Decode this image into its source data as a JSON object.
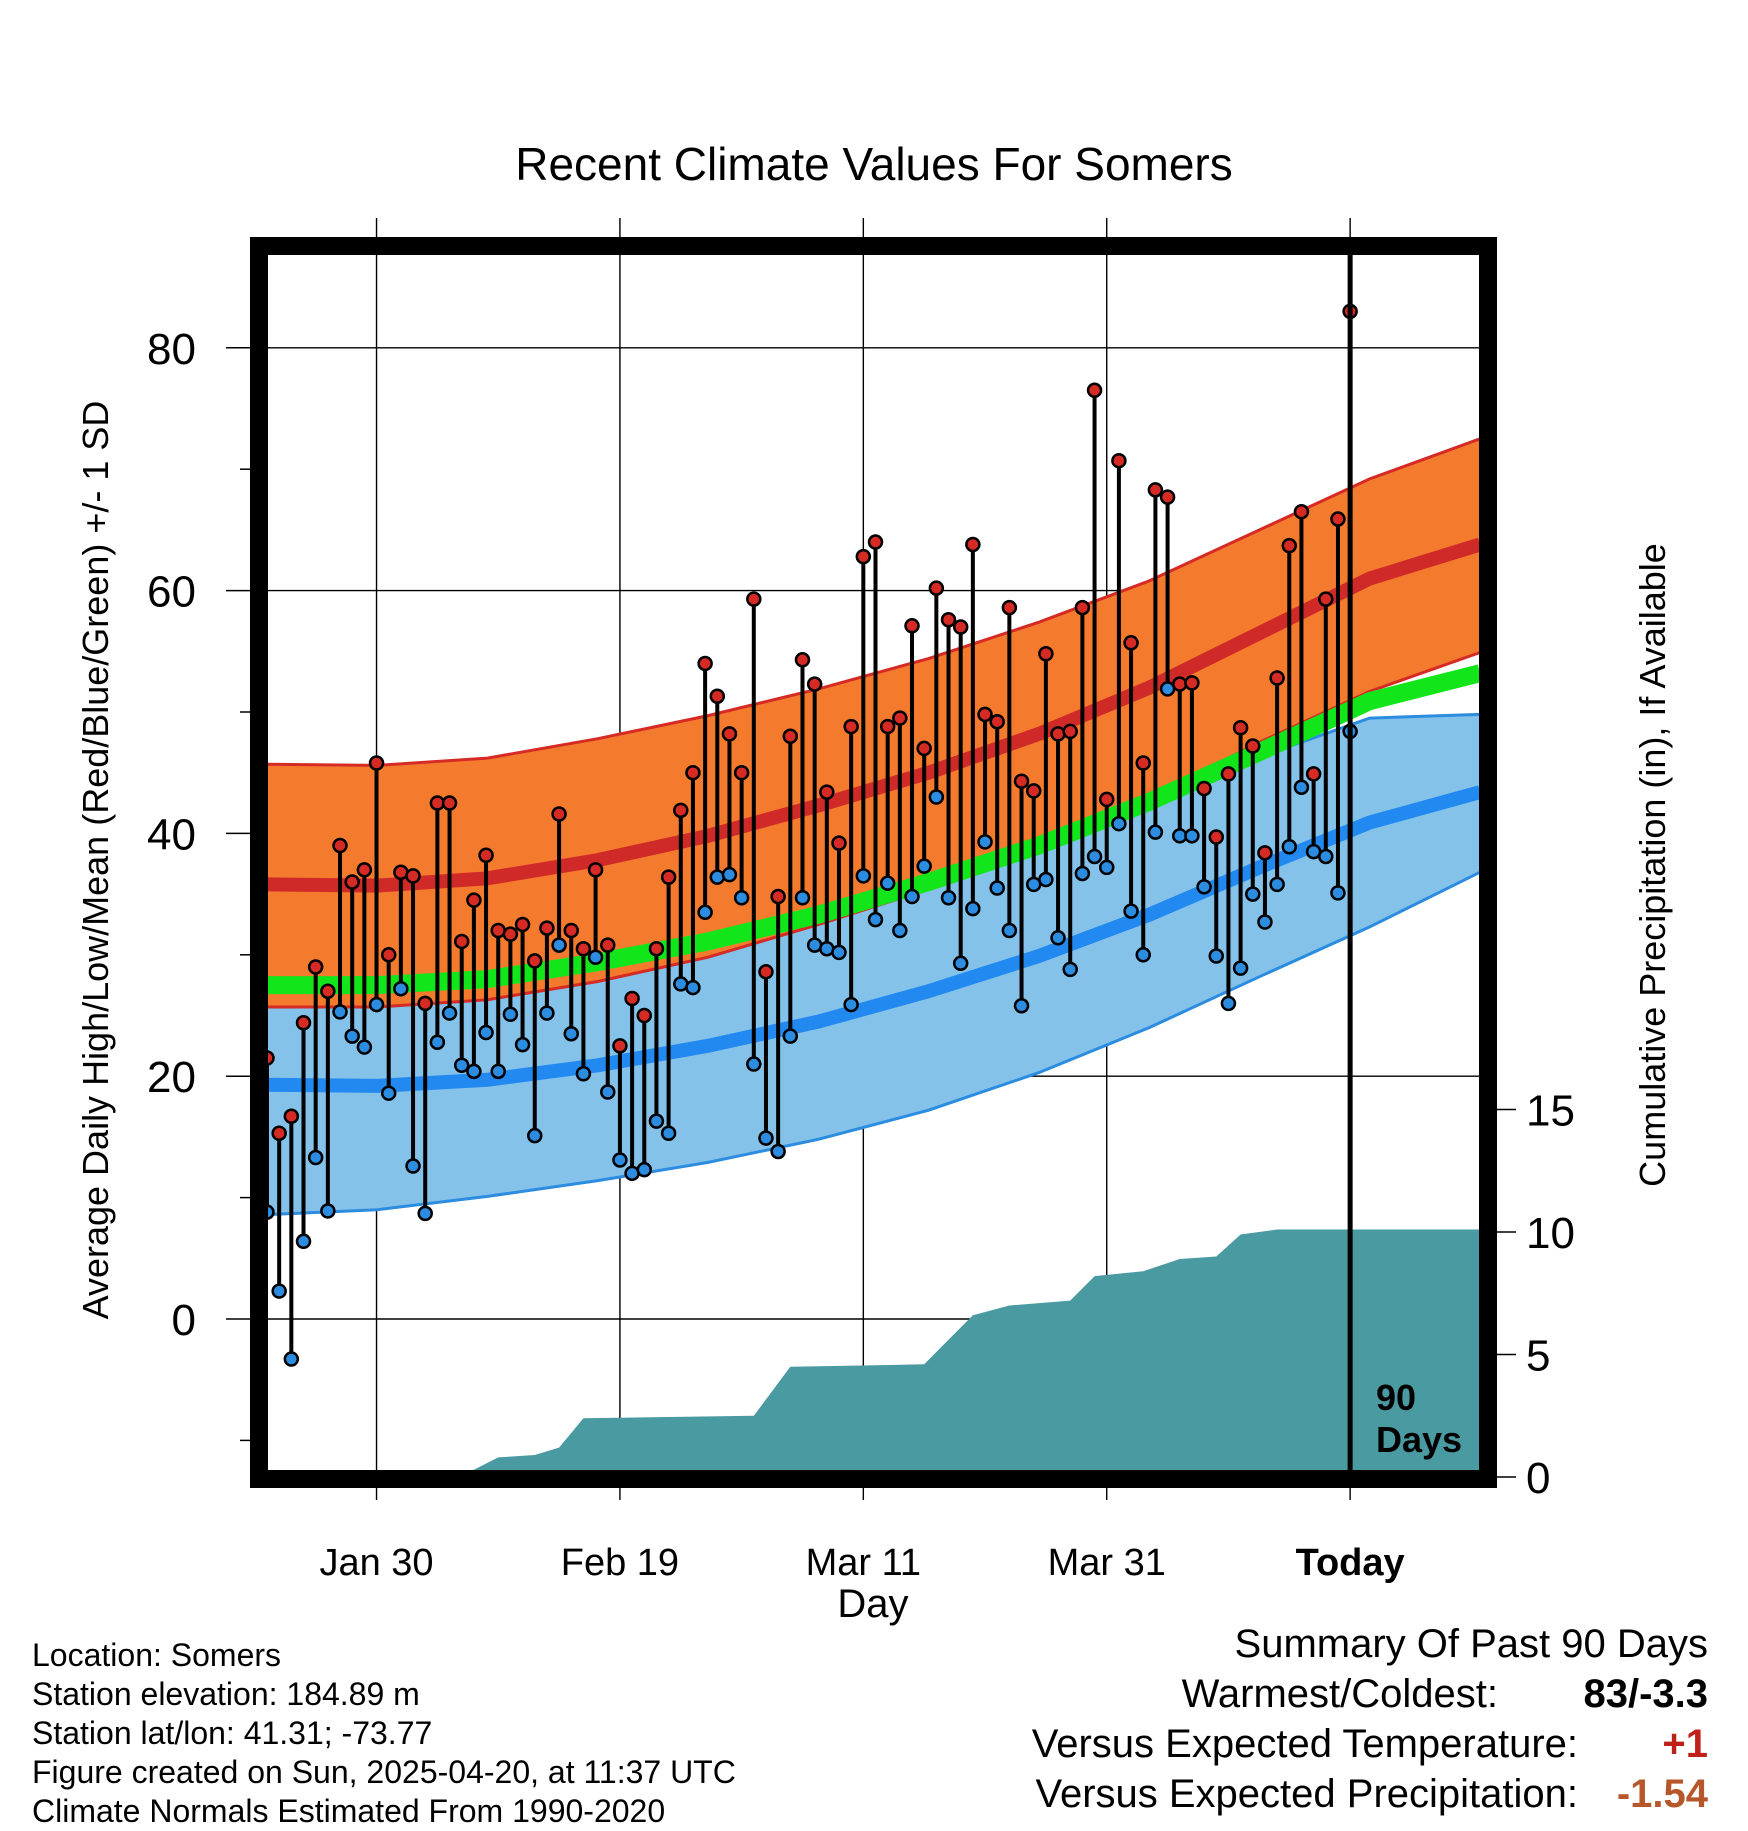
{
  "chart_data": {
    "type": "line",
    "title": "Recent Climate Values For Somers",
    "xlabel": "Day",
    "ylabel": "Average Daily High/Low/Mean (Red/Blue/Green) +/- 1 SD",
    "y2label": "Cumulative Precipitation (in), If Available",
    "ylim": [
      -13,
      88
    ],
    "y_ticks": [
      0,
      20,
      40,
      60,
      80
    ],
    "y2lim": [
      0,
      40
    ],
    "y2_ticks": [
      0,
      5,
      10,
      15
    ],
    "x_tick_labels": [
      "Jan 30",
      "Feb 19",
      "Mar 11",
      "Mar 31",
      "Today"
    ],
    "today_marker_label": [
      "90",
      "Days"
    ],
    "grid": true,
    "normals": {
      "high_mean": [
        35.8,
        35.7,
        36.3,
        37.8,
        39.8,
        42.3,
        45.0,
        48.2,
        52.0,
        56.5,
        61.0,
        63.8
      ],
      "high_upper": [
        45.7,
        45.6,
        46.2,
        47.8,
        49.7,
        51.9,
        54.4,
        57.4,
        60.8,
        65.0,
        69.2,
        72.5
      ],
      "high_lower": [
        25.7,
        25.7,
        26.3,
        27.8,
        29.8,
        32.5,
        35.4,
        38.8,
        42.9,
        47.5,
        51.7,
        54.9
      ],
      "low_mean": [
        19.3,
        19.2,
        19.7,
        20.9,
        22.5,
        24.5,
        27.0,
        29.9,
        33.3,
        37.2,
        40.9,
        43.4
      ],
      "low_upper": [
        30.0,
        29.6,
        29.8,
        30.8,
        32.2,
        34.1,
        36.5,
        39.3,
        42.5,
        46.3,
        49.5,
        49.8
      ],
      "low_lower": [
        8.6,
        9.0,
        10.1,
        11.4,
        12.9,
        14.8,
        17.2,
        20.3,
        24.0,
        28.2,
        32.3,
        36.8
      ],
      "avg_mean": [
        27.5,
        27.5,
        28.0,
        29.4,
        31.1,
        33.3,
        36.0,
        39.0,
        42.6,
        46.7,
        50.9,
        53.2
      ]
    },
    "series": [
      {
        "name": "High",
        "color": "#d62a24",
        "values": [
          21.5,
          15.3,
          16.7,
          24.4,
          29.0,
          27.0,
          39.0,
          36.0,
          37.0,
          45.8,
          30.0,
          36.8,
          36.5,
          26.0,
          42.5,
          42.5,
          31.1,
          34.5,
          38.2,
          32.0,
          31.7,
          32.5,
          29.5,
          32.2,
          41.6,
          32.0,
          30.5,
          37.0,
          30.8,
          22.5,
          26.4,
          25.0,
          30.5,
          36.4,
          41.9,
          45.0,
          54.0,
          51.3,
          48.2,
          45.0,
          59.3,
          28.6,
          34.8,
          48.0,
          54.3,
          52.3,
          43.4,
          39.2,
          48.8,
          62.8,
          64.0,
          48.8,
          49.5,
          57.1,
          47.0,
          60.2,
          57.6,
          57.0,
          63.8,
          49.8,
          49.2,
          58.6,
          44.3,
          43.5,
          54.8,
          48.2,
          48.4,
          58.6,
          76.5,
          42.8,
          70.7,
          55.7,
          45.8,
          68.3,
          67.7,
          52.3,
          52.4,
          43.7,
          39.7,
          44.9,
          48.7,
          47.2,
          38.4,
          52.8,
          63.7,
          66.5,
          44.9,
          59.3,
          65.9,
          83.0
        ]
      },
      {
        "name": "Low",
        "color": "#2b8ce0",
        "values": [
          8.8,
          2.3,
          -3.3,
          6.4,
          13.3,
          8.9,
          25.3,
          23.3,
          22.4,
          25.9,
          18.6,
          27.2,
          12.6,
          8.7,
          22.8,
          25.2,
          20.9,
          20.4,
          23.6,
          20.4,
          25.1,
          22.6,
          15.1,
          25.2,
          30.8,
          23.5,
          20.2,
          29.8,
          18.7,
          13.1,
          12.0,
          12.3,
          16.3,
          15.3,
          27.6,
          27.3,
          33.5,
          36.4,
          36.6,
          34.7,
          21.0,
          14.9,
          13.8,
          23.3,
          34.7,
          30.8,
          30.5,
          30.2,
          25.9,
          36.5,
          32.9,
          35.9,
          32.0,
          34.8,
          37.3,
          43.0,
          34.7,
          29.3,
          33.8,
          39.3,
          35.5,
          32.0,
          25.8,
          35.8,
          36.2,
          31.4,
          28.8,
          36.7,
          38.1,
          37.2,
          40.8,
          33.6,
          30.0,
          40.1,
          51.9,
          39.8,
          39.8,
          35.6,
          29.9,
          26.0,
          28.9,
          35.0,
          32.7,
          35.8,
          38.9,
          43.8,
          38.5,
          38.1,
          35.1,
          48.4
        ]
      }
    ],
    "precipitation": {
      "name": "Cumulative Precipitation",
      "color": "#4a9aa2",
      "points": [
        [
          0,
          0
        ],
        [
          12,
          0
        ],
        [
          14,
          0.1
        ],
        [
          17,
          0.3
        ],
        [
          19,
          0.8
        ],
        [
          22,
          0.9
        ],
        [
          24,
          1.2
        ],
        [
          26,
          2.4
        ],
        [
          40,
          2.5
        ],
        [
          43,
          4.5
        ],
        [
          54,
          4.6
        ],
        [
          56,
          5.6
        ],
        [
          58,
          6.6
        ],
        [
          61,
          7.0
        ],
        [
          66,
          7.2
        ],
        [
          68,
          8.2
        ],
        [
          72,
          8.4
        ],
        [
          75,
          8.9
        ],
        [
          78,
          9.0
        ],
        [
          80,
          9.9
        ],
        [
          83,
          10.1
        ],
        [
          100,
          10.1
        ]
      ]
    }
  },
  "info": {
    "location": "Location: Somers",
    "elevation": "Station elevation: 184.89 m",
    "latlon": "Station lat/lon: 41.31; -73.77",
    "created": "Figure created on Sun, 2025-04-20, at 11:37 UTC",
    "normals": "Climate Normals Estimated From 1990-2020"
  },
  "summary": {
    "heading": "Summary Of Past 90 Days",
    "warmest_coldest_label": "Warmest/Coldest:",
    "warmest_coldest_value": "83/-3.3",
    "temp_label": "Versus Expected Temperature:",
    "temp_value": "+1",
    "temp_color": "#c0201a",
    "precip_label": "Versus Expected Precipitation:",
    "precip_value": "-1.54",
    "precip_color": "#b5572a"
  }
}
